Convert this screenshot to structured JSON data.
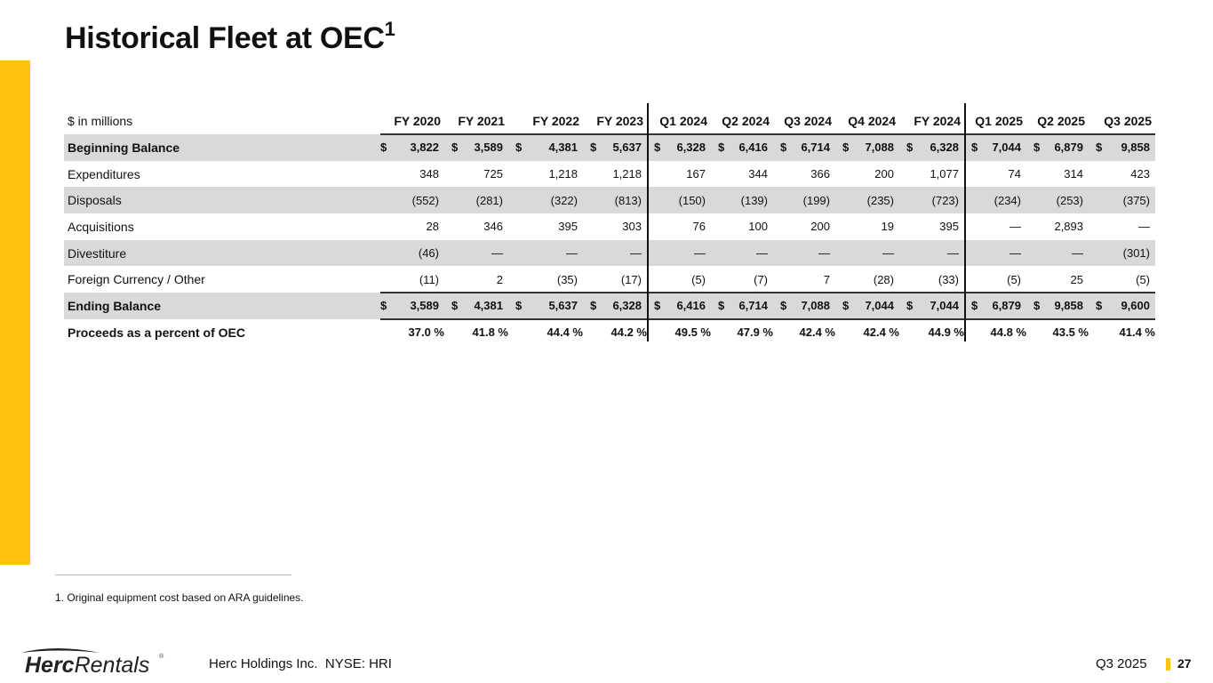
{
  "title": "Historical Fleet at OEC",
  "title_sup": "1",
  "table": {
    "units_label": "$ in millions",
    "columns": [
      "FY 2020",
      "FY 2021",
      "FY 2022",
      "FY 2023",
      "Q1 2024",
      "Q2 2024",
      "Q3 2024",
      "Q4 2024",
      "FY 2024",
      "Q1 2025",
      "Q2 2025",
      "Q3 2025"
    ],
    "rows": [
      {
        "label": "Beginning Balance",
        "bold": true,
        "shade": true,
        "dollar": true,
        "values": [
          "3,822",
          "3,589",
          "4,381",
          "5,637",
          "6,328",
          "6,416",
          "6,714",
          "7,088",
          "6,328",
          "7,044",
          "6,879",
          "9,858"
        ]
      },
      {
        "label": "Expenditures",
        "values": [
          "348",
          "725",
          "1,218",
          "1,218",
          "167",
          "344",
          "366",
          "200",
          "1,077",
          "74",
          "314",
          "423"
        ]
      },
      {
        "label": "Disposals",
        "shade": true,
        "values": [
          "(552)",
          "(281)",
          "(322)",
          "(813)",
          "(150)",
          "(139)",
          "(199)",
          "(235)",
          "(723)",
          "(234)",
          "(253)",
          "(375)"
        ]
      },
      {
        "label": "Acquisitions",
        "values": [
          "28",
          "346",
          "395",
          "303",
          "76",
          "100",
          "200",
          "19",
          "395",
          "—",
          "2,893",
          "—"
        ]
      },
      {
        "label": "Divestiture",
        "shade": true,
        "values": [
          "(46)",
          "—",
          "—",
          "—",
          "—",
          "—",
          "—",
          "—",
          "—",
          "—",
          "—",
          "(301)"
        ]
      },
      {
        "label": "Foreign Currency / Other",
        "values": [
          "(11)",
          "2",
          "(35)",
          "(17)",
          "(5)",
          "(7)",
          "7",
          "(28)",
          "(33)",
          "(5)",
          "25",
          "(5)"
        ]
      },
      {
        "label": "Ending Balance",
        "bold": true,
        "shade": true,
        "dollar": true,
        "values": [
          "3,589",
          "4,381",
          "5,637",
          "6,328",
          "6,416",
          "6,714",
          "7,088",
          "7,044",
          "7,044",
          "6,879",
          "9,858",
          "9,600"
        ]
      },
      {
        "label": "Proceeds as a percent of OEC",
        "bold": true,
        "pct": true,
        "values": [
          "37.0 %",
          "41.8 %",
          "44.4 %",
          "44.2 %",
          "49.5 %",
          "47.9 %",
          "42.4 %",
          "42.4 %",
          "44.9 %",
          "44.8 %",
          "43.5 %",
          "41.4 %"
        ]
      }
    ],
    "currency_symbol": "$"
  },
  "footnote": "1. Original equipment cost based on ARA guidelines.",
  "footer": {
    "logo_text": "HercRentals",
    "company": "Herc Holdings Inc.  NYSE: HRI",
    "quarter": "Q3 2025",
    "page": "27"
  },
  "colors": {
    "accent": "#ffc20e",
    "shade": "#d9d9d9"
  }
}
